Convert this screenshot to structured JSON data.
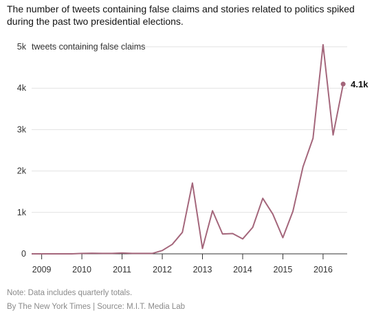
{
  "title": "The number of tweets containing false claims and stories related to politics spiked during the past two presidential elections.",
  "note": "Note: Data includes quarterly totals.",
  "credit": "By The New York Times | Source: M.I.T. Media Lab",
  "colors": {
    "line": "#a4667b",
    "grid": "#e2e2e2",
    "axis": "#333333",
    "background": "#ffffff"
  },
  "chart_data": {
    "type": "line",
    "title": "The number of tweets containing false claims and stories related to politics spiked during the past two presidential elections.",
    "ylabel": "tweets containing false claims",
    "xlabel": "",
    "ylim": [
      0,
      5000
    ],
    "xlim": [
      2008.75,
      2016.6
    ],
    "grid": true,
    "y_ticks": [
      0,
      1000,
      2000,
      3000,
      4000,
      5000
    ],
    "y_tick_labels": [
      "0",
      "1k",
      "2k",
      "3k",
      "4k",
      "5k"
    ],
    "x_ticks": [
      2009,
      2010,
      2011,
      2012,
      2013,
      2014,
      2015,
      2016
    ],
    "x_tick_labels": [
      "2009",
      "2010",
      "2011",
      "2012",
      "2013",
      "2014",
      "2015",
      "2016"
    ],
    "end_label": "4.1k",
    "series": [
      {
        "x": [
          2008.75,
          2009.0,
          2009.25,
          2009.5,
          2009.75,
          2010.0,
          2010.25,
          2010.5,
          2010.75,
          2011.0,
          2011.25,
          2011.5,
          2011.75,
          2012.0,
          2012.25,
          2012.5,
          2012.75,
          2013.0,
          2013.25,
          2013.5,
          2013.75,
          2014.0,
          2014.25,
          2014.5,
          2014.75,
          2015.0,
          2015.25,
          2015.5,
          2015.75,
          2016.0,
          2016.25,
          2016.5
        ],
        "values": [
          0,
          0,
          0,
          0,
          0,
          10,
          15,
          10,
          10,
          20,
          10,
          10,
          10,
          80,
          230,
          520,
          1710,
          130,
          1040,
          480,
          490,
          360,
          640,
          1340,
          960,
          390,
          1030,
          2100,
          2790,
          5050,
          2870,
          4100
        ]
      }
    ]
  }
}
